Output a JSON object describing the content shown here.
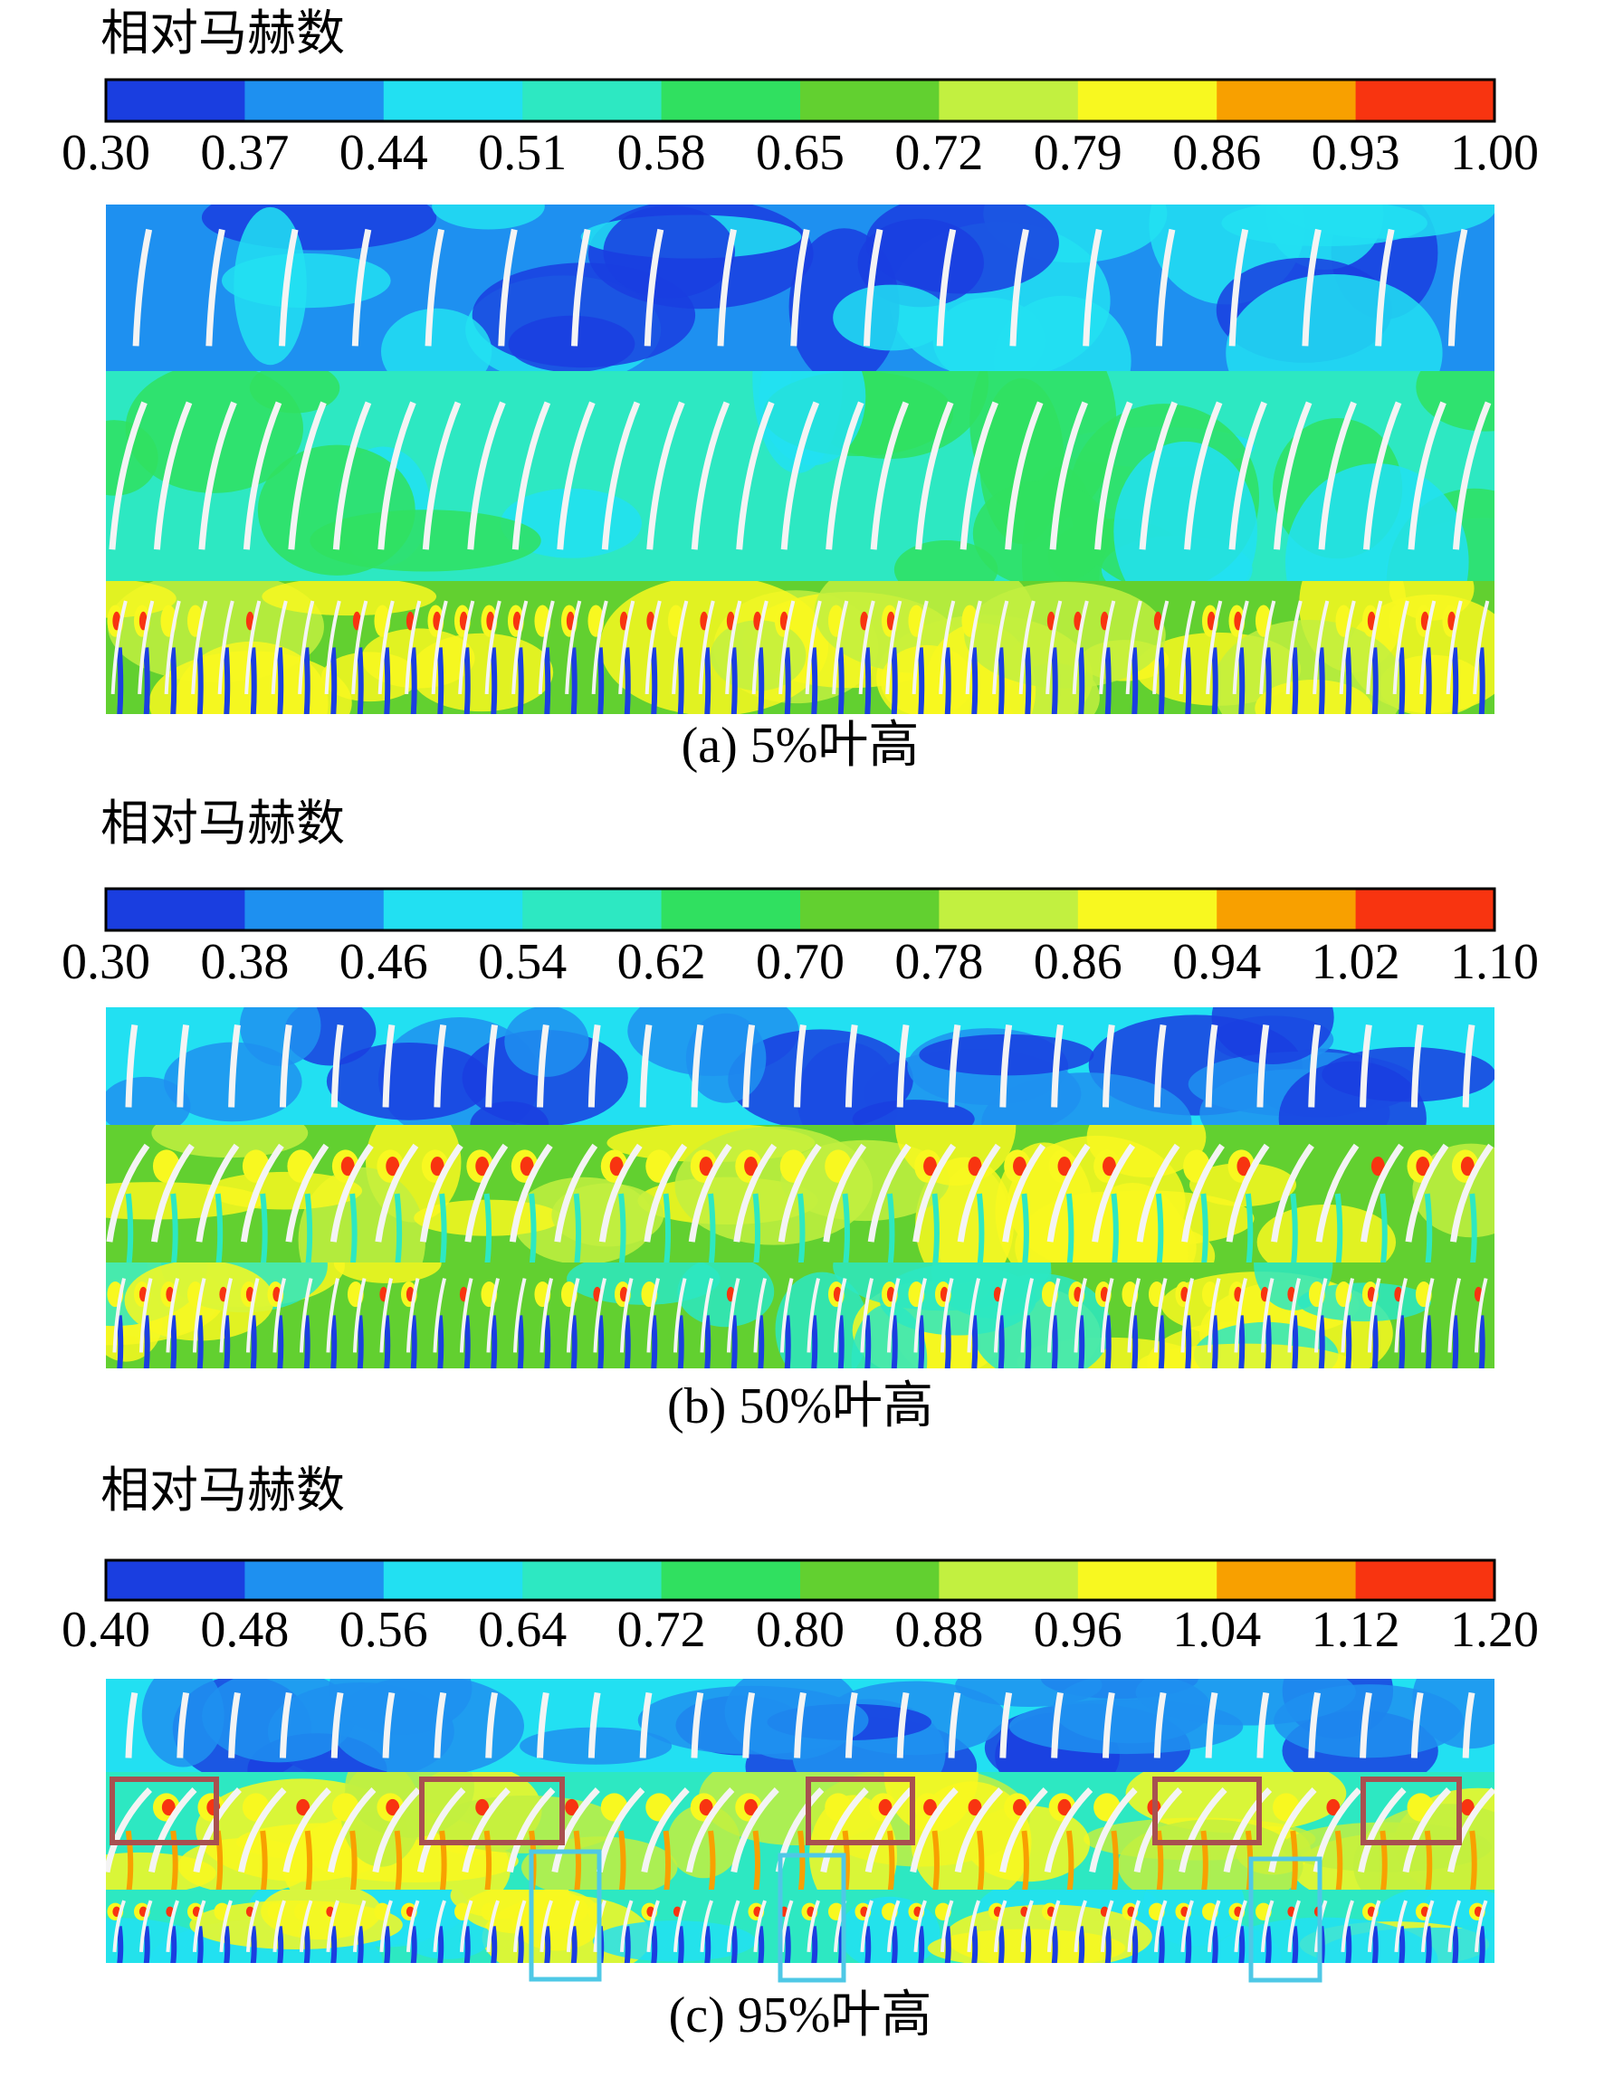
{
  "panels": [
    {
      "colorbar": {
        "title": "相对马赫数",
        "tick_labels": [
          "0.30",
          "0.37",
          "0.44",
          "0.51",
          "0.58",
          "0.65",
          "0.72",
          "0.79",
          "0.86",
          "0.93",
          "1.00"
        ]
      },
      "caption": "(a) 5%叶高"
    },
    {
      "colorbar": {
        "title": "相对马赫数",
        "tick_labels": [
          "0.30",
          "0.38",
          "0.46",
          "0.54",
          "0.62",
          "0.70",
          "0.78",
          "0.86",
          "0.94",
          "1.02",
          "1.10"
        ]
      },
      "caption": "(b) 50%叶高"
    },
    {
      "colorbar": {
        "title": "相对马赫数",
        "tick_labels": [
          "0.40",
          "0.48",
          "0.56",
          "0.64",
          "0.72",
          "0.80",
          "0.88",
          "0.96",
          "1.04",
          "1.12",
          "1.20"
        ]
      },
      "caption": "(c) 95%叶高"
    }
  ],
  "colorbar_colors": [
    "#1a3ee0",
    "#1e90f0",
    "#22e0f2",
    "#2de8c2",
    "#30e060",
    "#62d030",
    "#c2f040",
    "#f8f820",
    "#f8a000",
    "#f83410"
  ]
}
